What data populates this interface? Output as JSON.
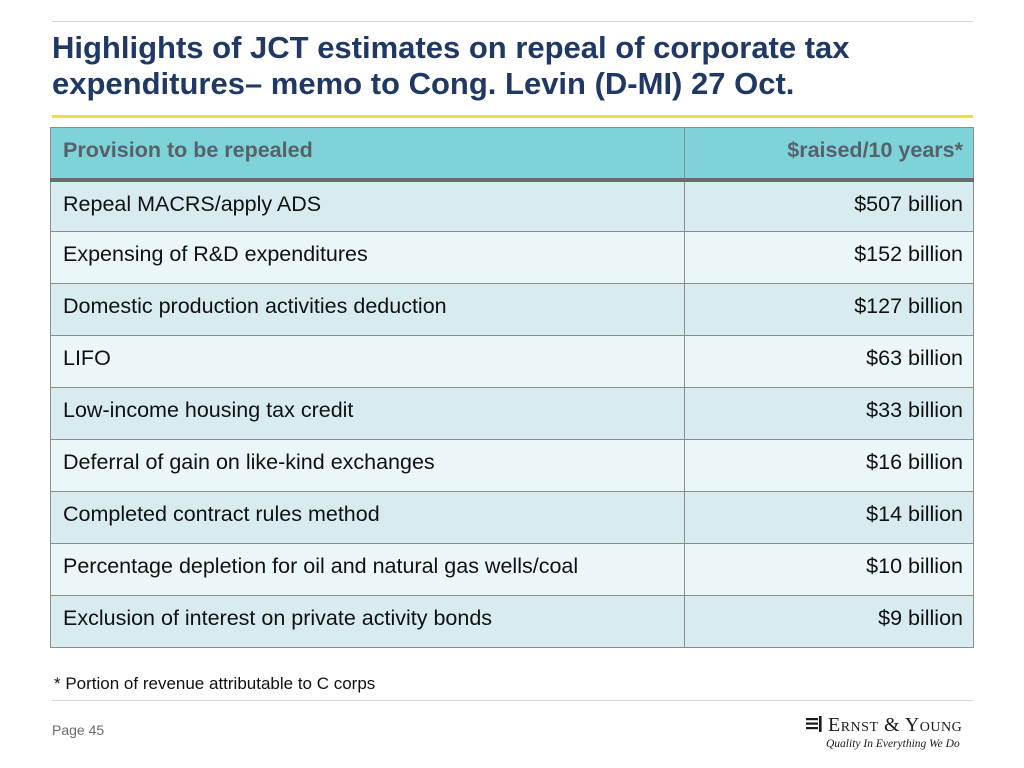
{
  "slide": {
    "title_lines": [
      "Highlights of JCT estimates on repeal of corporate tax",
      "expenditures– memo to Cong. Levin (D-MI) 27 Oct."
    ],
    "footnote": "* Portion of revenue attributable to C corps",
    "page_label": "Page 45"
  },
  "table": {
    "headers": {
      "provision": "Provision to be repealed",
      "amount": "$raised/10 years*"
    },
    "rows": [
      {
        "provision": "Repeal MACRS/apply ADS",
        "amount": "$507  billion"
      },
      {
        "provision": "Expensing of R&D expenditures",
        "amount": "$152 billion"
      },
      {
        "provision": "Domestic production activities deduction",
        "amount": "$127 billion"
      },
      {
        "provision": "LIFO",
        "amount": "$63 billion"
      },
      {
        "provision": "Low-income housing tax credit",
        "amount": "$33 billion"
      },
      {
        "provision": "Deferral of gain on like-kind exchanges",
        "amount": "$16 billion"
      },
      {
        "provision": "Completed contract rules method",
        "amount": "$14 billion"
      },
      {
        "provision": "Percentage depletion for oil and natural gas wells/coal",
        "amount": "$10 billion"
      },
      {
        "provision": "Exclusion of interest on private activity bonds",
        "amount": "$9 billion"
      }
    ]
  },
  "logo": {
    "name": "Ernst & Young",
    "tagline": "Quality In Everything We Do",
    "icon": "ey-bars-icon"
  },
  "colors": {
    "title": "#1f3864",
    "accent_rule": "#f5dc3c",
    "header_fill": "#7dd3d8",
    "row_dark": "#d8ecef",
    "row_light": "#ebf6f8"
  }
}
